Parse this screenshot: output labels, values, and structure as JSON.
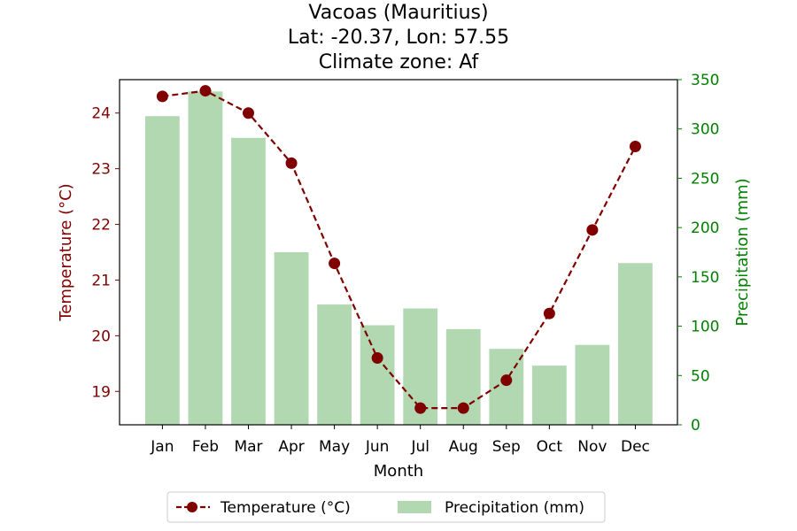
{
  "chart_data": {
    "type": "bar+line",
    "title_lines": [
      "Vacoas (Mauritius)",
      "Lat: -20.37, Lon: 57.55",
      "Climate zone: Af"
    ],
    "xlabel": "Month",
    "ylabel_left": "Temperature (°C)",
    "ylabel_right": "Precipitation (mm)",
    "categories": [
      "Jan",
      "Feb",
      "Mar",
      "Apr",
      "May",
      "Jun",
      "Jul",
      "Aug",
      "Sep",
      "Oct",
      "Nov",
      "Dec"
    ],
    "temperature": {
      "name": "Temperature (°C)",
      "color": "#800000",
      "values": [
        24.3,
        24.4,
        24.0,
        23.1,
        21.3,
        19.6,
        18.7,
        18.7,
        19.2,
        20.4,
        21.9,
        23.4
      ],
      "ylim": [
        18.4,
        24.6
      ],
      "ticks": [
        19,
        20,
        21,
        22,
        23,
        24
      ]
    },
    "precipitation": {
      "name": "Precipitation (mm)",
      "color": "#b2d8b2",
      "values": [
        313,
        338,
        291,
        175,
        122,
        101,
        118,
        97,
        77,
        60,
        81,
        164
      ],
      "ylim": [
        0,
        350
      ],
      "ticks": [
        0,
        50,
        100,
        150,
        200,
        250,
        300,
        350
      ]
    },
    "right_axis_color": "#008000",
    "legend_position": "bottom-center"
  }
}
